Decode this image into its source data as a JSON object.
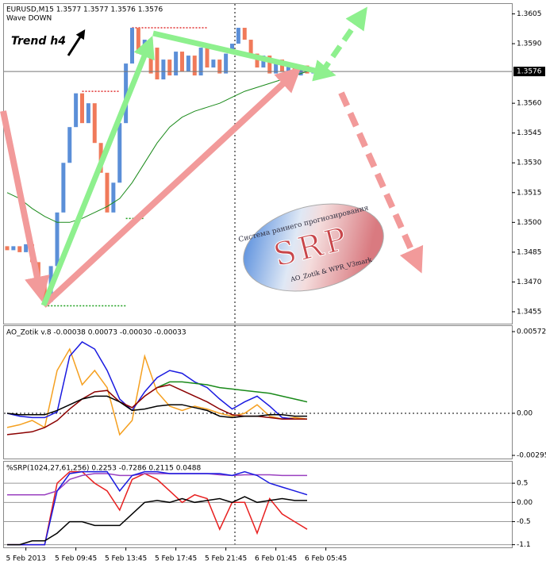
{
  "chart_data": [
    {
      "type": "candlestick",
      "title": "EURUSD,M15  1.3577 1.3577 1.3576 1.3576",
      "subtitle": "Wave DOWN",
      "annotation": "Trend h4",
      "logo": {
        "caption": "Система раннего прогнозирования",
        "name": "SRP",
        "credits": "AO_Zotik & WPR_V3mark"
      },
      "up_color": "#5b8fd8",
      "down_color": "#f07a5a",
      "open": [
        1.3488,
        1.3486,
        1.3488,
        1.3485,
        1.3489,
        1.348,
        1.347,
        1.346,
        1.3478,
        1.3505,
        1.353,
        1.3548,
        1.3565,
        1.355,
        1.356,
        1.354,
        1.3525,
        1.3505,
        1.352,
        1.355,
        1.358,
        1.3598,
        1.3585,
        1.3592,
        1.3588,
        1.3572,
        1.3582,
        1.3574,
        1.3586,
        1.3576,
        1.3584,
        1.3574,
        1.3588,
        1.3578,
        1.3582,
        1.3575,
        1.3585,
        1.359,
        1.3598,
        1.3592,
        1.3585,
        1.3578,
        1.3584,
        1.3575,
        1.3582,
        1.3576,
        1.358,
        1.3574,
        1.3579,
        1.3575
      ],
      "close": [
        1.3486,
        1.3488,
        1.3485,
        1.3489,
        1.348,
        1.347,
        1.346,
        1.3478,
        1.3505,
        1.353,
        1.3548,
        1.3565,
        1.355,
        1.356,
        1.354,
        1.3525,
        1.3505,
        1.352,
        1.355,
        1.358,
        1.3598,
        1.3585,
        1.3592,
        1.3575,
        1.3572,
        1.3582,
        1.3574,
        1.3586,
        1.3576,
        1.3584,
        1.3574,
        1.3588,
        1.3578,
        1.3582,
        1.3575,
        1.3585,
        1.359,
        1.3598,
        1.3592,
        1.3585,
        1.3578,
        1.3584,
        1.3575,
        1.3582,
        1.3576,
        1.358,
        1.3574,
        1.3579,
        1.3575,
        1.3576
      ],
      "lines": [
        {
          "color": "#1a8a1a",
          "x": [
            0,
            2,
            4,
            6,
            8,
            10,
            12,
            14,
            16,
            18,
            20,
            22,
            24,
            26,
            28,
            30,
            32,
            34,
            36,
            38,
            40,
            42,
            44,
            46,
            48
          ],
          "values": [
            1.3515,
            1.3512,
            1.3507,
            1.3503,
            1.35,
            1.35,
            1.3502,
            1.3505,
            1.3508,
            1.3512,
            1.352,
            1.353,
            1.354,
            1.3548,
            1.3553,
            1.3556,
            1.3558,
            1.356,
            1.3563,
            1.3566,
            1.3568,
            1.357,
            1.3572,
            1.3574,
            1.3576
          ]
        }
      ],
      "levels": [
        {
          "value": 1.3598,
          "from": 20,
          "to": 32,
          "color": "#e03030"
        },
        {
          "value": 1.3566,
          "from": 12,
          "to": 18,
          "color": "#e03030"
        },
        {
          "value": 1.3458,
          "from": 6,
          "to": 19,
          "color": "#1fa01f"
        },
        {
          "value": 1.3502,
          "from": 19,
          "to": 22,
          "color": "#1fa01f"
        }
      ],
      "current": {
        "value": 1.3576,
        "label": "1.3576"
      },
      "ylim": [
        1.3449,
        1.361
      ],
      "yticks": [
        1.3605,
        {
          "value": 1.359,
          "label": "1.3590"
        },
        {
          "value": 1.356,
          "label": "1.3560"
        },
        1.3545,
        {
          "value": 1.353,
          "label": "1.3530"
        },
        1.3515,
        {
          "value": 1.35,
          "label": "1.3500"
        },
        1.3485,
        {
          "value": 1.347,
          "label": "1.3470"
        },
        1.3455
      ]
    },
    {
      "type": "line",
      "title": "AO_Zotik v.8 -0.00038 0.00073 -0.00030 -0.00033",
      "ylim": [
        -0.00317,
        0.00611
      ],
      "yticks": [
        0.00572,
        {
          "value": 0,
          "label": "0.00"
        },
        -0.00295
      ],
      "x": [
        0,
        2,
        4,
        6,
        8,
        10,
        12,
        14,
        16,
        18,
        20,
        22,
        24,
        26,
        28,
        30,
        32,
        34,
        36,
        38,
        40,
        42,
        44,
        46,
        48
      ],
      "series": [
        {
          "color": "#f5a020",
          "values": [
            -0.001,
            -0.0008,
            -0.0005,
            -0.001,
            0.003,
            0.0045,
            0.002,
            0.003,
            0.0018,
            -0.0015,
            -0.0005,
            0.004,
            0.0015,
            0.0005,
            0.0002,
            0.0005,
            0.0003,
            0.0,
            -0.0002,
            0.0,
            0.0006,
            -0.0002,
            -0.0004,
            -0.0003,
            -0.0004
          ]
        },
        {
          "color": "#1a1ae0",
          "values": [
            0,
            -0.0002,
            -0.0003,
            -0.0003,
            0.0001,
            0.004,
            0.005,
            0.0045,
            0.003,
            0.001,
            0.0002,
            0.0015,
            0.0025,
            0.003,
            0.0028,
            0.0022,
            0.0018,
            0.001,
            0.0003,
            0.0008,
            0.0012,
            0.0005,
            -0.0003,
            -0.0004,
            -0.0004
          ]
        },
        {
          "color": "#1a8a1a",
          "values": [
            null,
            null,
            null,
            null,
            null,
            null,
            null,
            null,
            null,
            null,
            null,
            null,
            0.0018,
            0.0022,
            0.0022,
            0.0021,
            0.002,
            0.0018,
            0.0017,
            0.0016,
            0.0015,
            0.0014,
            0.0012,
            0.001,
            0.0008
          ]
        },
        {
          "color": "#8b0000",
          "values": [
            -0.0015,
            -0.0014,
            -0.0013,
            -0.001,
            -0.0005,
            0.0003,
            0.001,
            0.0015,
            0.0016,
            0.0008,
            0.0004,
            0.0012,
            0.0018,
            0.002,
            0.0016,
            0.0012,
            0.0008,
            0.0003,
            -0.0001,
            -0.0002,
            -0.0002,
            -0.0003,
            -0.0004,
            -0.0004,
            -0.0004
          ]
        },
        {
          "color": "#000000",
          "values": [
            0.0,
            -0.0001,
            -0.0001,
            -0.0001,
            0.0002,
            0.0006,
            0.001,
            0.0012,
            0.0012,
            0.0008,
            0.0002,
            0.0003,
            0.0005,
            0.0006,
            0.0006,
            0.0004,
            0.0002,
            -0.0002,
            -0.0003,
            -0.0002,
            -0.0002,
            -0.0001,
            -0.0001,
            -0.0002,
            -0.0002
          ]
        }
      ]
    },
    {
      "type": "line",
      "title": "%SRP(1024,27,61,256) 0.2253 -0.7286 0.2115 0.0488",
      "grid": true,
      "ylim": [
        -1.17,
        1.06
      ],
      "yticks": [
        0.5,
        {
          "value": 0,
          "label": "0.00"
        },
        -0.5,
        -1.1
      ],
      "categories": [
        null,
        null,
        null,
        "5 Feb 2013",
        null,
        null,
        null,
        null,
        null,
        null,
        null,
        "5 Feb 09:45",
        null,
        null,
        null,
        null,
        null,
        null,
        null,
        "5 Feb 13:45",
        null,
        null,
        null,
        null,
        null,
        null,
        null,
        "5 Feb 17:45",
        null,
        null,
        null,
        null,
        null,
        null,
        null,
        "5 Feb 21:45",
        null,
        null,
        null,
        null,
        null,
        null,
        null,
        "6 Feb 01:45",
        null,
        null,
        null,
        null,
        null,
        null,
        null,
        "6 Feb 05:45"
      ],
      "x": [
        0,
        2,
        4,
        6,
        8,
        10,
        12,
        14,
        16,
        18,
        20,
        22,
        24,
        26,
        28,
        30,
        32,
        34,
        36,
        38,
        40,
        42,
        44,
        46,
        48
      ],
      "series": [
        {
          "color": "#e82020",
          "values": [
            -1.1,
            -1.1,
            -1.1,
            -1.1,
            0.5,
            0.8,
            0.8,
            0.5,
            0.3,
            -0.2,
            0.6,
            0.75,
            0.6,
            0.3,
            0.0,
            0.2,
            0.1,
            -0.7,
            0.0,
            0.0,
            -0.8,
            0.1,
            -0.3,
            -0.5,
            -0.7
          ]
        },
        {
          "color": "#9a40c0",
          "values": [
            0.2,
            0.2,
            0.2,
            0.2,
            0.3,
            0.6,
            0.7,
            0.75,
            0.75,
            0.7,
            0.7,
            0.75,
            0.75,
            0.75,
            0.75,
            0.75,
            0.75,
            0.72,
            0.7,
            0.72,
            0.72,
            0.72,
            0.7,
            0.7,
            0.7
          ]
        },
        {
          "color": "#1a1ae0",
          "values": [
            -1.1,
            -1.1,
            -1.1,
            -1.1,
            0.3,
            0.75,
            0.8,
            0.8,
            0.8,
            0.3,
            0.7,
            0.8,
            0.8,
            0.75,
            0.75,
            0.75,
            0.75,
            0.75,
            0.7,
            0.8,
            0.7,
            0.5,
            0.4,
            0.3,
            0.2
          ]
        },
        {
          "color": "#000000",
          "values": [
            -1.1,
            -1.1,
            -1.0,
            -1.0,
            -0.8,
            -0.5,
            -0.5,
            -0.6,
            -0.6,
            -0.6,
            -0.3,
            0.0,
            0.05,
            0.0,
            0.1,
            0.0,
            0.05,
            0.1,
            0.0,
            0.15,
            0.0,
            0.05,
            0.1,
            0.05,
            0.05
          ]
        }
      ]
    }
  ]
}
